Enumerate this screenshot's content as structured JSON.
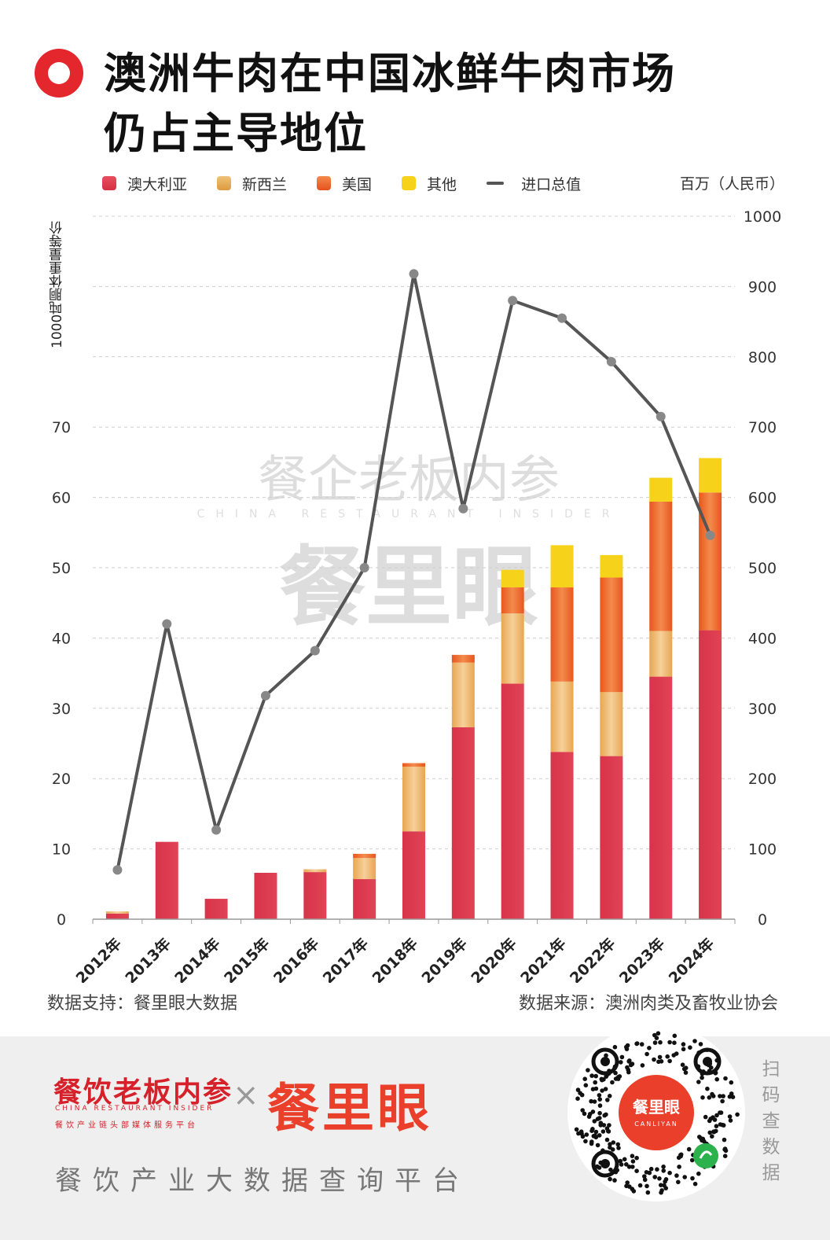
{
  "title": {
    "line1": "澳洲牛肉在中国冰鲜牛肉市场",
    "line2": "仍占主导地位"
  },
  "legend": {
    "items": [
      {
        "label": "澳大利亚",
        "color": "#dd3d4e"
      },
      {
        "label": "新西兰",
        "color": "#e9ad57"
      },
      {
        "label": "美国",
        "color": "#ed6a2f"
      },
      {
        "label": "其他",
        "color": "#f6d31a"
      },
      {
        "label": "进口总值",
        "color": "#555555"
      }
    ]
  },
  "y_left_label": "1000吨胴体重量等价",
  "y_right_unit": "百万（人民币）",
  "footer": {
    "support": "数据支持：餐里眼大数据",
    "source": "数据来源：澳洲肉类及畜牧业协会"
  },
  "branding": {
    "brand1": "餐饮老板内参",
    "brand1_en": "CHINA RESTAURANT INSIDER",
    "brand1_sub": "餐饮产业链头部媒体服务平台",
    "times": "×",
    "brand2": "餐里眼",
    "slogan": "餐饮产业大数据查询平台",
    "qr_center": "餐里眼",
    "qr_center_en": "CANLIYAN",
    "scan": "扫码查数据"
  },
  "watermark": {
    "text1": "餐企老板内参",
    "text1_en": "CHINA RESTAURANT INSIDER",
    "text2": "餐里眼"
  },
  "chart_data": {
    "type": "bar",
    "stacked": true,
    "categories": [
      "2012年",
      "2013年",
      "2014年",
      "2015年",
      "2016年",
      "2017年",
      "2018年",
      "2019年",
      "2020年",
      "2021年",
      "2022年",
      "2023年",
      "2024年"
    ],
    "series": [
      {
        "name": "澳大利亚",
        "color": "#dd3d4e",
        "values": [
          0.8,
          11.0,
          2.9,
          6.6,
          6.7,
          5.7,
          12.5,
          27.3,
          33.5,
          23.8,
          23.2,
          34.5,
          41.1
        ]
      },
      {
        "name": "新西兰",
        "color": "#e9ad57",
        "values": [
          0.3,
          0,
          0,
          0,
          0.4,
          3.0,
          9.2,
          9.2,
          10.0,
          10.0,
          9.1,
          6.5,
          0
        ]
      },
      {
        "name": "美国",
        "color": "#ed6a2f",
        "values": [
          0,
          0,
          0,
          0,
          0,
          0.6,
          0.5,
          1.1,
          3.7,
          13.4,
          16.3,
          18.4,
          19.6
        ]
      },
      {
        "name": "其他",
        "color": "#f6d31a",
        "values": [
          0,
          0,
          0,
          0,
          0,
          0,
          0,
          0,
          2.5,
          6.0,
          3.2,
          3.4,
          4.9
        ]
      }
    ],
    "line": {
      "name": "进口总值",
      "color": "#555555",
      "axis": "right",
      "values": [
        70,
        420,
        127,
        318,
        382,
        500,
        918,
        584,
        880,
        855,
        793,
        715,
        546
      ]
    },
    "y_left": {
      "label": "1000吨胴体重量等价",
      "ticks": [
        0,
        10,
        20,
        30,
        40,
        50,
        60,
        70
      ],
      "max": 100
    },
    "y_right": {
      "unit": "百万（人民币）",
      "ticks": [
        0,
        100,
        200,
        300,
        400,
        500,
        600,
        700,
        800,
        900,
        1000
      ],
      "max": 1000
    },
    "grid": true,
    "legend_position": "top"
  }
}
